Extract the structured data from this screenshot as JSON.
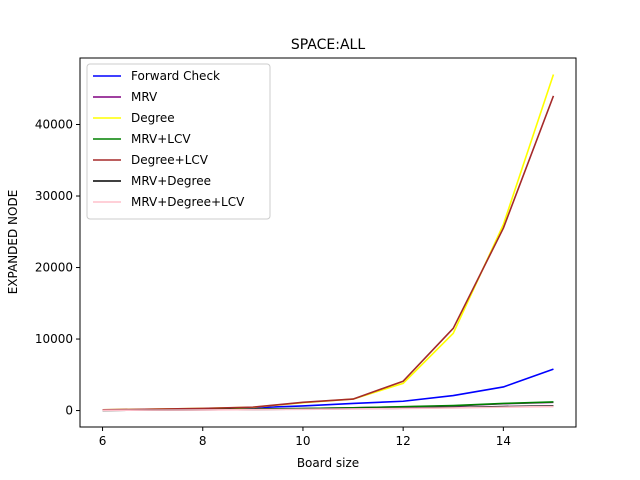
{
  "chart_data": {
    "type": "line",
    "title": "SPACE:ALL",
    "xlabel": "Board size",
    "ylabel": "EXPANDED NODE",
    "x": [
      6,
      7,
      8,
      9,
      10,
      11,
      12,
      13,
      14,
      15
    ],
    "xlim": [
      5.55,
      15.45
    ],
    "ylim": [
      -2300,
      49300
    ],
    "xticks": [
      6,
      8,
      10,
      12,
      14
    ],
    "yticks": [
      0,
      10000,
      20000,
      30000,
      40000
    ],
    "grid": false,
    "legend_position": "top-left",
    "series": [
      {
        "name": "Forward Check",
        "color": "#0000ff",
        "values": [
          50,
          150,
          250,
          400,
          650,
          1000,
          1300,
          2100,
          3300,
          5800
        ]
      },
      {
        "name": "MRV",
        "color": "#800080",
        "values": [
          30,
          80,
          120,
          200,
          280,
          380,
          500,
          650,
          950,
          1150
        ]
      },
      {
        "name": "Degree",
        "color": "#ffff00",
        "values": [
          100,
          200,
          300,
          450,
          1100,
          1600,
          3800,
          10800,
          26000,
          47000
        ]
      },
      {
        "name": "MRV+LCV",
        "color": "#008000",
        "values": [
          30,
          80,
          120,
          200,
          280,
          380,
          550,
          700,
          1000,
          1200
        ]
      },
      {
        "name": "Degree+LCV",
        "color": "#a52a2a",
        "values": [
          100,
          200,
          300,
          480,
          1150,
          1600,
          4100,
          11500,
          25500,
          44000
        ]
      },
      {
        "name": "MRV+Degree",
        "color": "#000000",
        "values": [
          30,
          70,
          100,
          150,
          200,
          260,
          330,
          420,
          560,
          650
        ]
      },
      {
        "name": "MRV+Degree+LCV",
        "color": "#ffc0cb",
        "values": [
          30,
          60,
          90,
          130,
          170,
          220,
          290,
          360,
          480,
          560
        ]
      }
    ]
  }
}
